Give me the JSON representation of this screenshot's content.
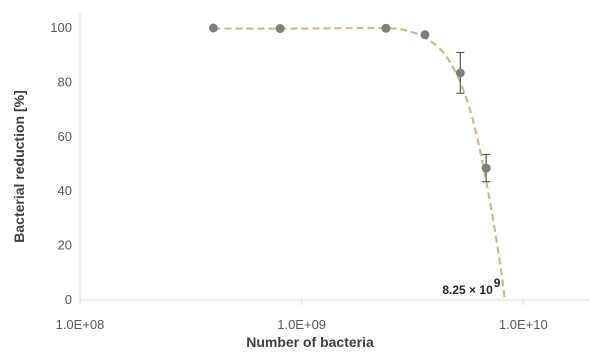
{
  "chart_data": {
    "type": "scatter",
    "xlabel": "Number of bacteria",
    "ylabel": "Bacterial reduction [%]",
    "x_scale": "log",
    "xlim": [
      100000000,
      20000000000
    ],
    "ylim": [
      0,
      100
    ],
    "x_ticks": [
      {
        "value": 100000000,
        "label": "1.0E+08"
      },
      {
        "value": 1000000000,
        "label": "1.0E+09"
      },
      {
        "value": 10000000000,
        "label": "1.0E+10"
      }
    ],
    "y_ticks": [
      0,
      20,
      40,
      60,
      80,
      100
    ],
    "grid": false,
    "legend": "none",
    "series": [
      {
        "points": [
          {
            "x": 400000000,
            "y": 100
          },
          {
            "x": 800000000,
            "y": 99.8
          },
          {
            "x": 2400000000,
            "y": 99.9
          },
          {
            "x": 3600000000,
            "y": 97.5
          },
          {
            "x": 5200000000,
            "y": 83.5,
            "err": 7.5
          },
          {
            "x": 6800000000,
            "y": 48.5,
            "err": 5
          }
        ]
      }
    ],
    "fit_curve": [
      {
        "x": 400000000,
        "y": 99.8
      },
      {
        "x": 1000000000,
        "y": 99.8
      },
      {
        "x": 2000000000,
        "y": 100
      },
      {
        "x": 2600000000,
        "y": 99.8
      },
      {
        "x": 3000000000,
        "y": 99
      },
      {
        "x": 3600000000,
        "y": 96.5
      },
      {
        "x": 4300000000,
        "y": 91.5
      },
      {
        "x": 5000000000,
        "y": 83
      },
      {
        "x": 5700000000,
        "y": 71
      },
      {
        "x": 6300000000,
        "y": 57
      },
      {
        "x": 6900000000,
        "y": 41
      },
      {
        "x": 7500000000,
        "y": 24
      },
      {
        "x": 8000000000,
        "y": 9
      },
      {
        "x": 8250000000,
        "y": 0
      }
    ],
    "annotation": {
      "text": "8.25 × 10",
      "superscript": "9",
      "x": 8250000000,
      "y": 0
    },
    "colors": {
      "marker": "#7f7f7f",
      "curve": "#c9bb8e",
      "axis": "#d9d9d9",
      "error": "#595959"
    }
  }
}
